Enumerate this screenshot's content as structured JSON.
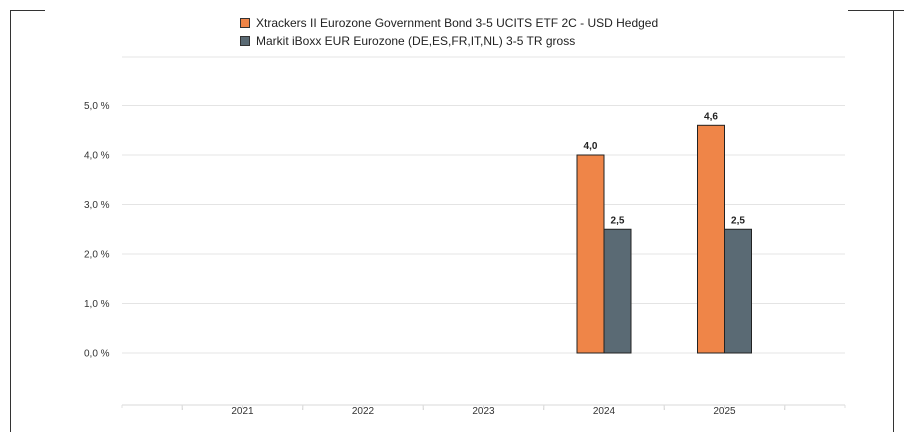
{
  "chart_data": {
    "type": "bar",
    "categories": [
      "2021",
      "2022",
      "2023",
      "2024",
      "2025"
    ],
    "series": [
      {
        "name": "Xtrackers II Eurozone Government Bond 3-5 UCITS ETF 2C - USD Hedged",
        "color": "#ef8548",
        "values": [
          null,
          null,
          null,
          4.0,
          4.6
        ],
        "labels": [
          "",
          "",
          "",
          "4,0",
          "4,6"
        ]
      },
      {
        "name": "Markit iBoxx EUR Eurozone (DE,ES,FR,IT,NL) 3-5 TR gross",
        "color": "#5a6a74",
        "values": [
          null,
          null,
          null,
          2.5,
          2.5
        ],
        "labels": [
          "",
          "",
          "",
          "2,5",
          "2,5"
        ]
      }
    ],
    "y_ticks": [
      {
        "value": 5.0,
        "label": "5,0 %"
      },
      {
        "value": 4.0,
        "label": "4,0 %"
      },
      {
        "value": 3.0,
        "label": "3,0 %"
      },
      {
        "value": 2.0,
        "label": "2,0 %"
      },
      {
        "value": 1.0,
        "label": "1,0 %"
      },
      {
        "value": 0.0,
        "label": "0,0 %"
      }
    ],
    "ylim": [
      0,
      5.5
    ],
    "grid": true,
    "legend_position": "top"
  }
}
